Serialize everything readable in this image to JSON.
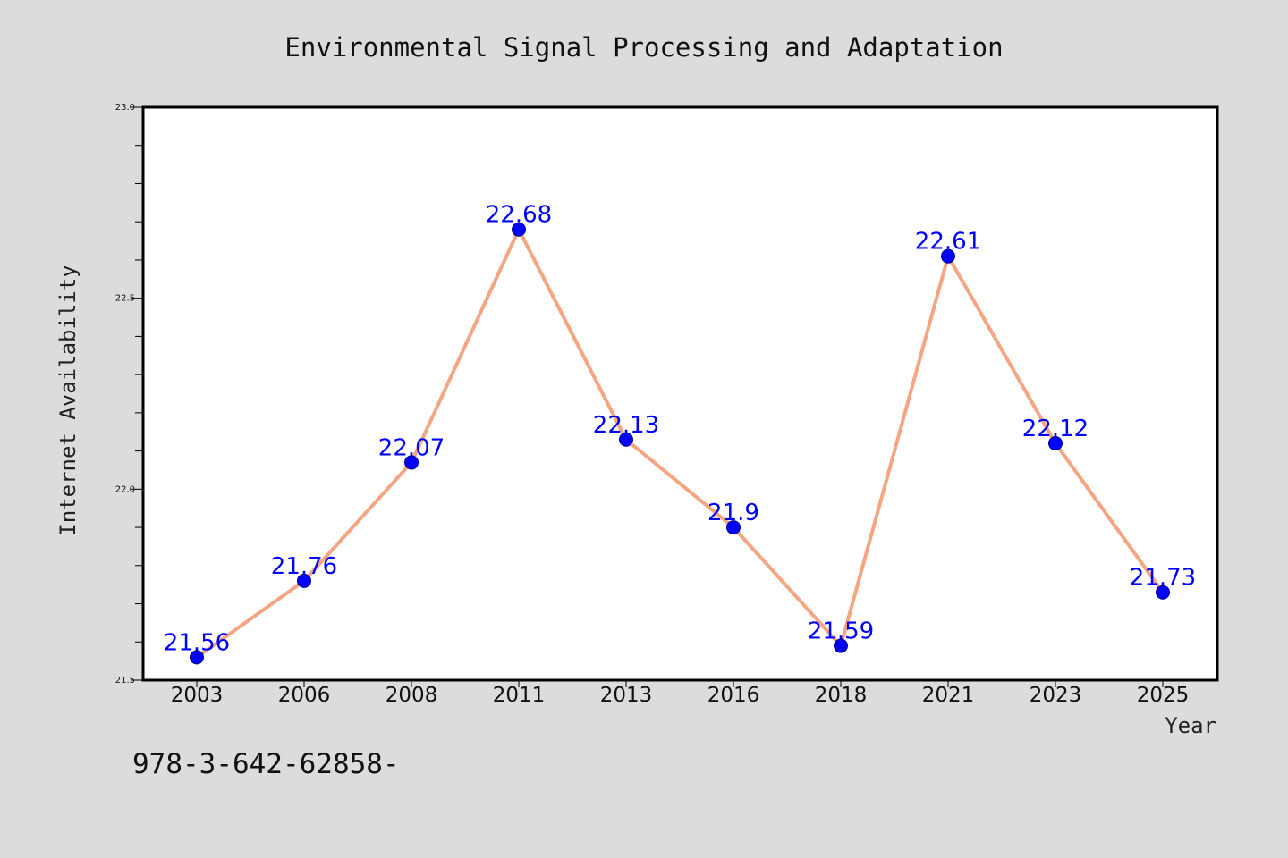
{
  "chart_data": {
    "type": "line",
    "title": "Environmental Signal Processing and Adaptation",
    "xlabel": "Year",
    "ylabel": "Internet Availability",
    "categories": [
      "2003",
      "2006",
      "2008",
      "2011",
      "2013",
      "2016",
      "2018",
      "2021",
      "2023",
      "2025"
    ],
    "series": [
      {
        "values": [
          21.56,
          21.76,
          22.07,
          22.68,
          22.13,
          21.9,
          21.59,
          22.61,
          22.12,
          21.73
        ],
        "data_labels": [
          "21.56",
          "21.76",
          "22.07",
          "22.68",
          "22.13",
          "21.9",
          "21.59",
          "22.61",
          "22.12",
          "21.73"
        ]
      }
    ],
    "ylim": [
      21.5,
      23.0
    ],
    "y_ticks": [
      "21.5",
      "22.0",
      "22.5",
      "23.0"
    ],
    "y_minor_step": 0.1,
    "grid": false,
    "legend": "none",
    "colors": {
      "line": "#f4a582",
      "marker": "#0000ff",
      "data_label": "#0000ff",
      "plot_bg": "#ffffff",
      "page_bg": "#dcdcdc"
    }
  },
  "footer_text": "978-3-642-62858-"
}
